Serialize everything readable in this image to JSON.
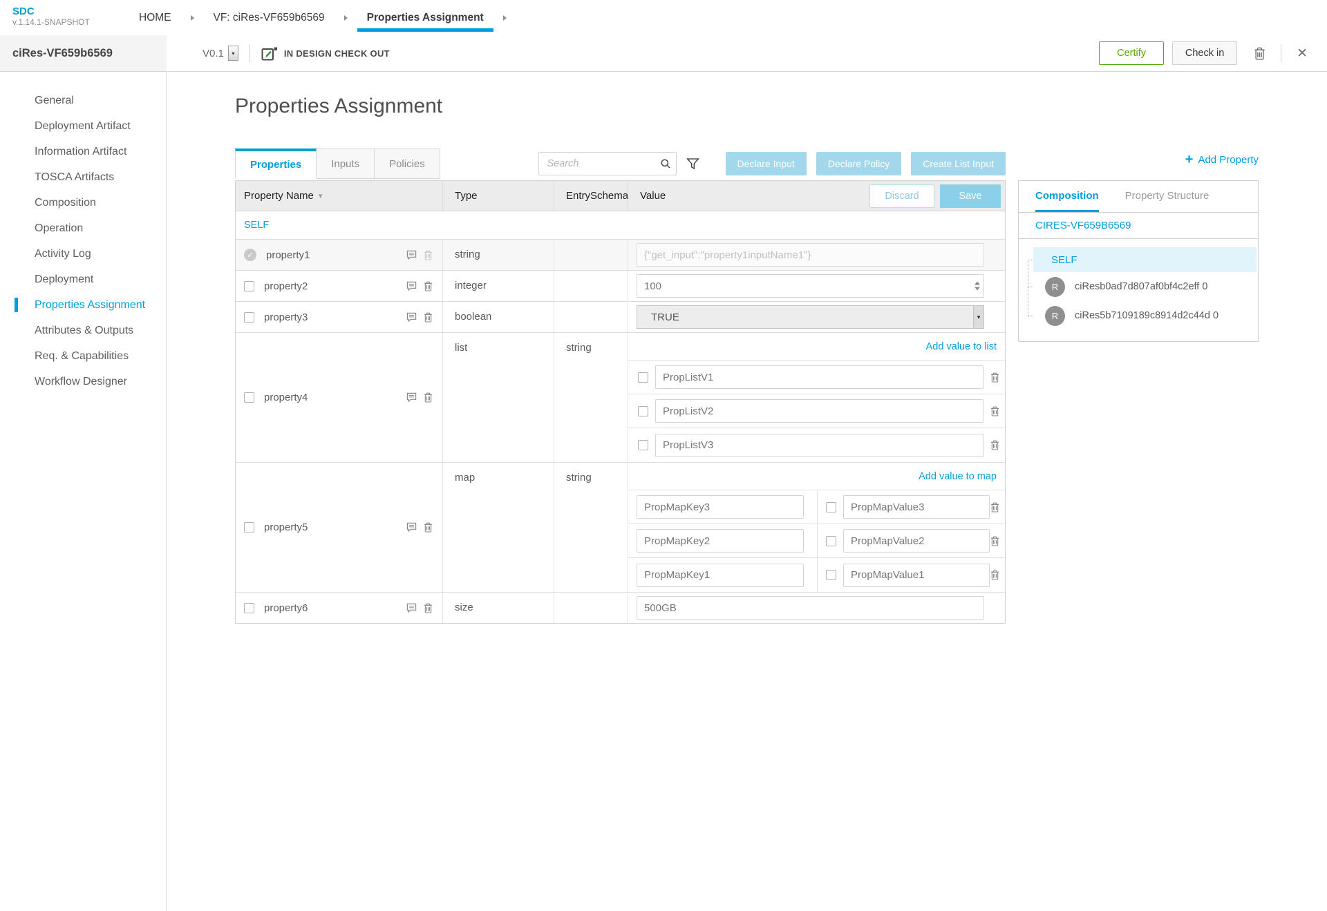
{
  "app": {
    "name": "SDC",
    "version": "v.1.14.1-SNAPSHOT"
  },
  "breadcrumbs": [
    {
      "label": "HOME",
      "active": false
    },
    {
      "label": "VF: ciRes-VF659b6569",
      "active": false
    },
    {
      "label": "Properties Assignment",
      "active": true
    }
  ],
  "workspace": {
    "entity_name": "ciRes-VF659b6569",
    "version": "V0.1",
    "status": "IN DESIGN CHECK OUT",
    "certify_label": "Certify",
    "checkin_label": "Check in"
  },
  "sidebar": {
    "items": [
      {
        "label": "General",
        "active": false
      },
      {
        "label": "Deployment Artifact",
        "active": false
      },
      {
        "label": "Information Artifact",
        "active": false
      },
      {
        "label": "TOSCA Artifacts",
        "active": false
      },
      {
        "label": "Composition",
        "active": false
      },
      {
        "label": "Operation",
        "active": false
      },
      {
        "label": "Activity Log",
        "active": false
      },
      {
        "label": "Deployment",
        "active": false
      },
      {
        "label": "Properties Assignment",
        "active": true
      },
      {
        "label": "Attributes & Outputs",
        "active": false
      },
      {
        "label": "Req. & Capabilities",
        "active": false
      },
      {
        "label": "Workflow Designer",
        "active": false
      }
    ]
  },
  "main": {
    "title": "Properties Assignment",
    "tabs": [
      {
        "label": "Properties",
        "active": true
      },
      {
        "label": "Inputs",
        "active": false
      },
      {
        "label": "Policies",
        "active": false
      }
    ],
    "search_placeholder": "Search",
    "actions": [
      "Declare Input",
      "Declare Policy",
      "Create List Input"
    ],
    "add_property_label": "Add Property",
    "table": {
      "columns": [
        "Property Name",
        "Type",
        "EntrySchema",
        "Value"
      ],
      "discard_label": "Discard",
      "save_label": "Save",
      "group_label": "SELF",
      "rows": [
        {
          "name": "property1",
          "type": "string",
          "entry_schema": "",
          "kind": "declared",
          "value": "{\"get_input\":\"property1inputName1\"}"
        },
        {
          "name": "property2",
          "type": "integer",
          "entry_schema": "",
          "kind": "number",
          "value": "100"
        },
        {
          "name": "property3",
          "type": "boolean",
          "entry_schema": "",
          "kind": "select",
          "value": "TRUE"
        },
        {
          "name": "property4",
          "type": "list",
          "entry_schema": "string",
          "kind": "list",
          "add_label": "Add value to list",
          "items": [
            "PropListV1",
            "PropListV2",
            "PropListV3"
          ]
        },
        {
          "name": "property5",
          "type": "map",
          "entry_schema": "string",
          "kind": "map",
          "add_label": "Add value to map",
          "entries": [
            {
              "key": "PropMapKey3",
              "value": "PropMapValue3"
            },
            {
              "key": "PropMapKey2",
              "value": "PropMapValue2"
            },
            {
              "key": "PropMapKey1",
              "value": "PropMapValue1"
            }
          ]
        },
        {
          "name": "property6",
          "type": "size",
          "entry_schema": "",
          "kind": "text",
          "value": "500GB"
        }
      ]
    }
  },
  "right_panel": {
    "tabs": [
      {
        "label": "Composition",
        "active": true
      },
      {
        "label": "Property Structure",
        "active": false
      }
    ],
    "component_name": "CIRES-VF659B6569",
    "tree": {
      "root": "SELF",
      "children": [
        {
          "avatar": "R",
          "label": "ciResb0ad7d807af0bf4c2eff 0"
        },
        {
          "avatar": "R",
          "label": "ciRes5b7109189c8914d2c44d 0"
        }
      ]
    }
  },
  "icons": {
    "close": "✕",
    "plus": "+",
    "sort_desc": "▾",
    "select_arrow": "▾",
    "check": "✓"
  },
  "colors": {
    "accent_blue": "#009fdb",
    "action_button_blue": "#a3d7ec",
    "save_button_blue": "#8ccfe9",
    "certify_green": "#5aa700",
    "tree_highlight": "#e2f4fb",
    "avatar_gray": "#8f8f8f"
  }
}
